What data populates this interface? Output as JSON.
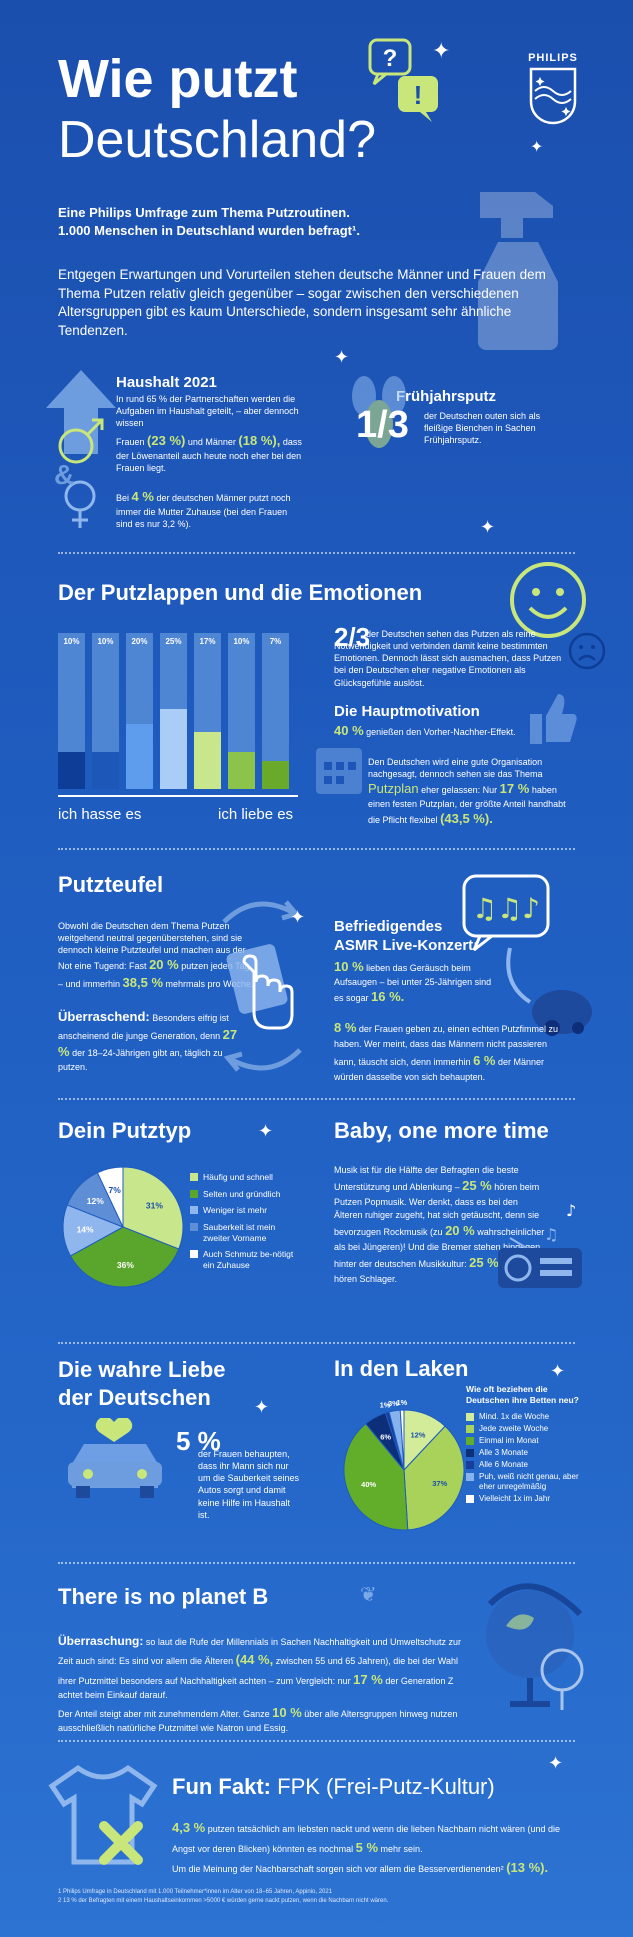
{
  "header": {
    "title_line1": "Wie putzt",
    "title_line2": "Deutschland?",
    "logo_text": "PHILIPS",
    "survey_line1": "Eine Philips Umfrage zum Thema Putzroutinen.",
    "survey_line2": "1.000 Menschen in Deutschland wurden befragt¹.",
    "intro": "Entgegen Erwartungen und Vorurteilen stehen deutsche Männer und Frauen dem Thema Putzen relativ gleich gegenüber – sogar zwischen den verschiedenen Altersgruppen gibt es kaum Unterschiede, sondern insgesamt sehr ähnliche Tendenzen."
  },
  "haushalt": {
    "title": "Haushalt 2021",
    "text1": "In rund 65 % der Partnerschaften werden die Aufgaben im Haushalt geteilt, – aber dennoch wissen",
    "frauen": "Frauen",
    "frauen_pct": "(23 %)",
    "und_maenner": "und Männer",
    "maenner_pct": "(18 %),",
    "text2": "dass der Löwenanteil auch heute noch eher bei den Frauen liegt.",
    "bei": "Bei",
    "pct4": "4 %",
    "text3": "der deutschen Männer putzt noch immer die Mutter Zuhause (bei den Frauen sind es nur 3,2 %)."
  },
  "fruehjahr": {
    "title": "Frühjahrsputz",
    "fraction": "1/3",
    "text": "der Deutschen outen sich als fleißige Bienchen in Sachen Frühjahrsputz."
  },
  "emotionen": {
    "title": "Der Putzlappen und die Emotionen",
    "scale_left": "ich hasse es",
    "scale_right": "ich liebe es",
    "fraction": "2/3",
    "text1": "der Deutschen sehen das Putzen als reine Notwendigkeit und verbinden damit keine bestimmten Emotionen. Dennoch lässt sich ausmachen, dass Putzen bei den Deutschen eher negative Emotionen als Glücksgefühle auslöst.",
    "motiv_title": "Die Hauptmotivation",
    "motiv_pct": "40 %",
    "motiv_text": "genießen den Vorher-Nachher-Effekt.",
    "plan_text1": "Den Deutschen wird eine gute Organisation nachgesagt, dennoch sehen sie das Thema",
    "plan_word": "Putzplan",
    "plan_text2": "eher gelassen: Nur",
    "plan_pct1": "17 %",
    "plan_text3": "haben einen festen Putzplan, der größte Anteil handhabt die Pflicht flexibel",
    "plan_pct2": "(43,5 %)."
  },
  "chart_data": [
    {
      "type": "bar",
      "categories": [
        "1",
        "2",
        "3",
        "4",
        "5",
        "6",
        "7"
      ],
      "values": [
        10,
        10,
        20,
        25,
        17,
        10,
        7
      ],
      "labels": [
        "10%",
        "10%",
        "20%",
        "25%",
        "17%",
        "10%",
        "7%"
      ],
      "colors": [
        "#0d3d96",
        "#1d58b8",
        "#5e9cee",
        "#a9cdf7",
        "#c8e68c",
        "#8cc44b",
        "#6aaa2a"
      ],
      "xlabel_left": "ich hasse es",
      "xlabel_right": "ich liebe es"
    },
    {
      "type": "pie",
      "labels": [
        "Häufig und schnell",
        "Selten und gründlich",
        "Weniger ist mehr",
        "Sauberkeit ist mein zweiter Vorname",
        "Auch Schmutz be-nötigt ein Zuhause"
      ],
      "values": [
        31,
        36,
        14,
        12,
        7
      ],
      "value_labels": [
        "31%",
        "36%",
        "14%",
        "12%",
        "7%"
      ],
      "colors": [
        "#c8e68c",
        "#5aa62c",
        "#8fb7ee",
        "#5e8fd6",
        "#ffffff"
      ]
    },
    {
      "type": "pie",
      "labels": [
        "Mind. 1x die Woche",
        "Jede zweite Woche",
        "Einmal im Monat",
        "Alle 3 Monate",
        "Alle 6 Monate",
        "Puh, weiß nicht genau, aber eher unregelmäßig",
        "Vielleicht 1x im Jahr"
      ],
      "values": [
        12,
        37,
        40,
        6,
        1,
        3,
        1
      ],
      "value_labels": [
        "12%",
        "37%",
        "40%",
        "6%",
        "1%",
        "3%",
        "1%"
      ],
      "colors": [
        "#d3ec9a",
        "#a8d25a",
        "#62ad2a",
        "#0d2f7a",
        "#163f9c",
        "#86b3ee",
        "#ffffff"
      ],
      "title": "Wie oft beziehen die Deutschen ihre Betten neu?"
    }
  ],
  "putzteufel": {
    "title": "Putzteufel",
    "text1": "Obwohl die Deutschen dem Thema Putzen weitgehend neutral gegenüberstehen, sind sie dennoch kleine Putzteufel und machen aus der Not eine Tugend: Fast",
    "pct20": "20 %",
    "text2": "putzen jeden Tag – und immerhin",
    "pct385": "38,5 %",
    "text3": "mehrmals pro Woche.",
    "ueber_title": "Überraschend:",
    "ueber_text1": "Besonders eifrig ist anscheinend die junge Generation, denn",
    "pct27": "27 %",
    "ueber_text2": "der 18–24-Jährigen gibt an, täglich zu putzen."
  },
  "asmr": {
    "title_line1": "Befriedigendes",
    "title_line2": "ASMR Live-Konzert:",
    "pct10": "10 %",
    "text1": "lieben das Geräusch beim Aufsaugen – bei unter 25-Jährigen sind es sogar",
    "pct16": "16 %.",
    "pct8": "8 %",
    "text2": "der Frauen geben zu, einen echten Putzfimmel zu haben. Wer meint, dass das Männern nicht passieren kann, täuscht sich, denn immerhin",
    "pct6": "6 %",
    "text3": "der Männer würden dasselbe von sich behaupten."
  },
  "putztyp": {
    "title": "Dein Putztyp"
  },
  "baby": {
    "title": "Baby, one more time",
    "text1": "Musik ist für die Hälfte der Befragten die beste Unterstützung und Ablenkung –",
    "pct25a": "25 %",
    "text2": "hören beim Putzen Popmusik. Wer denkt, dass es bei den Älteren ruhiger zugeht, hat sich getäuscht, denn sie bevorzugen Rockmusik (zu",
    "pct20": "20 %",
    "text3": "wahrscheinlicher als bei Jüngeren)! Und die Bremer stehen hingegen hinter der deutschen Musikkultur:",
    "pct25b": "25 %",
    "text4": "von ihnen hören Schlager."
  },
  "liebe": {
    "title_line1": "Die wahre Liebe",
    "title_line2": "der Deutschen",
    "pct": "5 %",
    "text": "der Frauen behaupten, dass ihr Mann sich nur um die Sauberkeit seines Autos sorgt und damit keine Hilfe im Haushalt ist."
  },
  "laken": {
    "title": "In den Laken"
  },
  "planet": {
    "title": "There is no planet B",
    "ueber": "Überraschung:",
    "text1": "so laut die Rufe der Millennials in Sachen Nachhaltigkeit und Umweltschutz zur Zeit auch sind: Es sind vor allem die Älteren",
    "pct44": "(44 %,",
    "text2": "zwischen 55 und 65 Jahren), die bei der Wahl ihrer Putzmittel besonders auf Nachhaltigkeit achten – zum Vergleich: nur",
    "pct17": "17 %",
    "text3": "der Generation Z achtet beim Einkauf darauf.",
    "text4": "Der Anteil steigt aber mit zunehmendem Alter. Ganze",
    "pct10": "10 %",
    "text5": "über alle Altersgruppen hinweg nutzen ausschließlich natürliche Putzmittel wie Natron und Essig."
  },
  "fakt": {
    "title_bold": "Fun Fakt:",
    "title_light": "FPK (Frei-Putz-Kultur)",
    "pct43": "4,3 %",
    "text1": "putzen tatsächlich am liebsten nackt und wenn die lieben Nachbarn nicht wären (und die Angst vor deren Blicken) könnten es nochmal",
    "pct5": "5 %",
    "text2": "mehr sein.",
    "text3": "Um die Meinung der Nachbarschaft sorgen sich vor allem die Besserverdienenden²",
    "pct13": "(13 %)."
  },
  "footnotes": {
    "f1": "1  Philips Umfrage in Deutschland mit 1.000 Teilnehmer*innen im Alter von 18–65 Jahren, Appinio, 2021",
    "f2": "2  13 % der Befragten mit einem Haushaltseinkommen >5000 € würden gerne nackt putzen, wenn die Nachbarn nicht wären."
  }
}
